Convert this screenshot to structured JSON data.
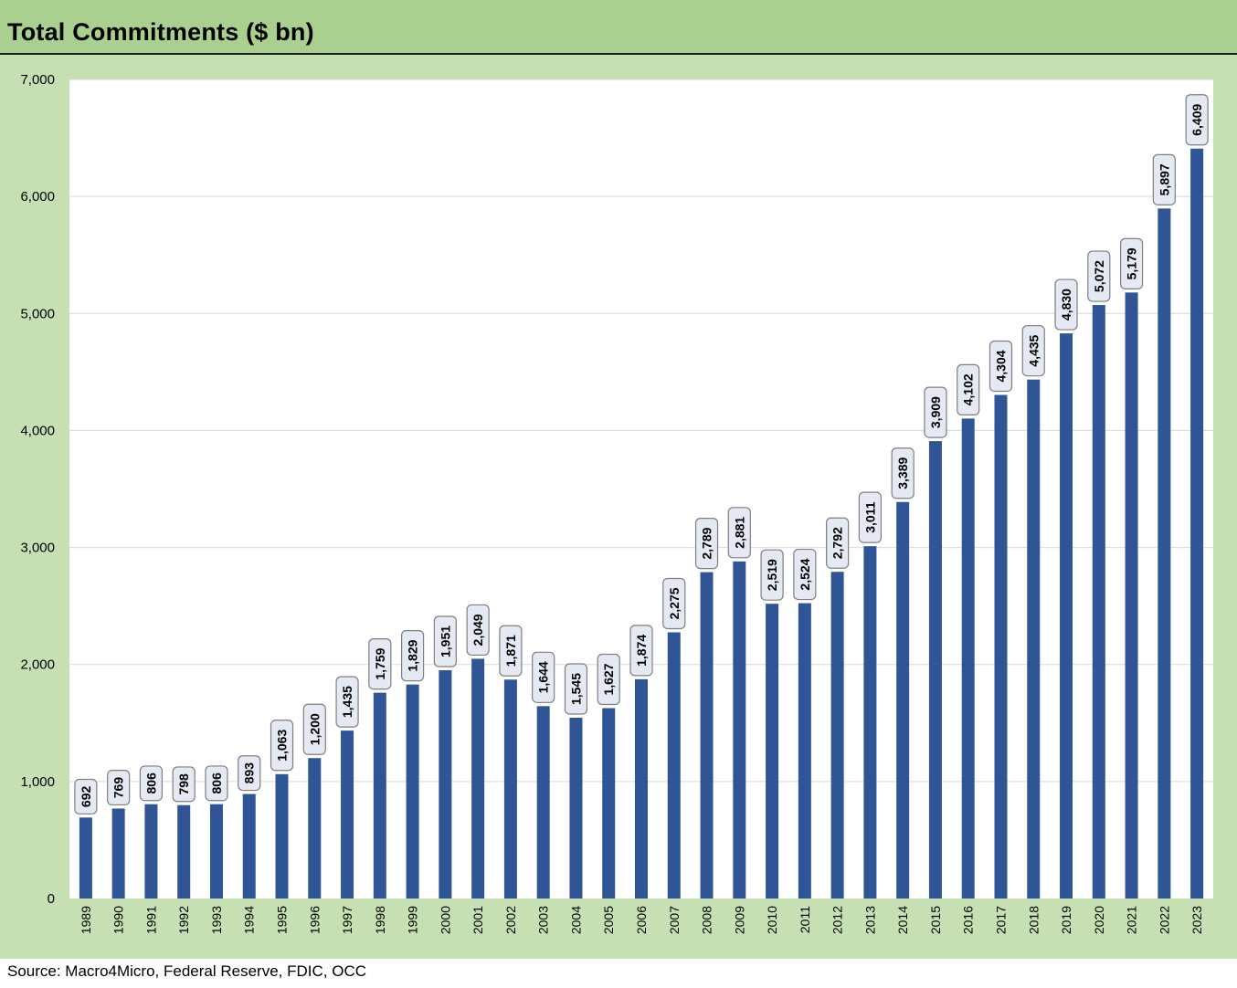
{
  "chart_data": {
    "type": "bar",
    "title": "Total Commitments ($ bn)",
    "xlabel": "",
    "ylabel": "",
    "ylim": [
      0,
      7000
    ],
    "yticks": [
      0,
      1000,
      2000,
      3000,
      4000,
      5000,
      6000,
      7000
    ],
    "ytick_labels": [
      "0",
      "1,000",
      "2,000",
      "3,000",
      "4,000",
      "5,000",
      "6,000",
      "7,000"
    ],
    "grid": true,
    "legend": "none",
    "bar_color": "#2f5597",
    "categories": [
      "1989",
      "1990",
      "1991",
      "1992",
      "1993",
      "1994",
      "1995",
      "1996",
      "1997",
      "1998",
      "1999",
      "2000",
      "2001",
      "2002",
      "2003",
      "2004",
      "2005",
      "2006",
      "2007",
      "2008",
      "2009",
      "2010",
      "2011",
      "2012",
      "2013",
      "2014",
      "2015",
      "2016",
      "2017",
      "2018",
      "2019",
      "2020",
      "2021",
      "2022",
      "2023"
    ],
    "values": [
      692,
      769,
      806,
      798,
      806,
      893,
      1063,
      1200,
      1435,
      1759,
      1829,
      1951,
      2049,
      1871,
      1644,
      1545,
      1627,
      1874,
      2275,
      2789,
      2881,
      2519,
      2524,
      2792,
      3011,
      3389,
      3909,
      4102,
      4304,
      4435,
      4830,
      5072,
      5179,
      5897,
      6409
    ],
    "data_labels": [
      "692",
      "769",
      "806",
      "798",
      "806",
      "893",
      "1,063",
      "1,200",
      "1,435",
      "1,759",
      "1,829",
      "1,951",
      "2,049",
      "1,871",
      "1,644",
      "1,545",
      "1,627",
      "1,874",
      "2,275",
      "2,789",
      "2,881",
      "2,519",
      "2,524",
      "2,792",
      "3,011",
      "3,389",
      "3,909",
      "4,102",
      "4,304",
      "4,435",
      "4,830",
      "5,072",
      "5,179",
      "5,897",
      "6,409"
    ]
  },
  "source": "Source: Macro4Micro, Federal Reserve, FDIC, OCC",
  "colors": {
    "frame": "#c6e0b4",
    "title_bar": "#a9d08e",
    "plot_bg": "#ffffff",
    "grid": "#d9d9d9",
    "label_bg": "#e4e9f4",
    "label_border": "#7f7f7f"
  }
}
